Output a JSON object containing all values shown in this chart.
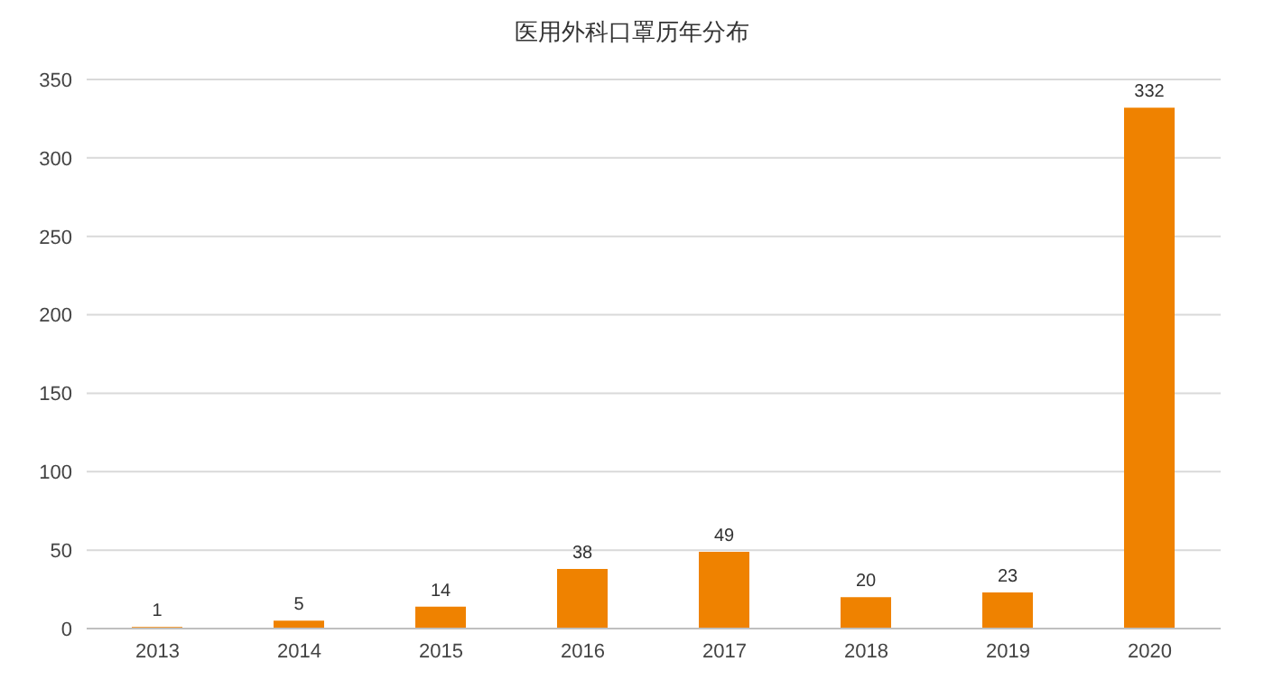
{
  "chart_data": {
    "type": "bar",
    "title": "医用外科口罩历年分布",
    "categories": [
      "2013",
      "2014",
      "2015",
      "2016",
      "2017",
      "2018",
      "2019",
      "2020"
    ],
    "values": [
      1,
      5,
      14,
      38,
      49,
      20,
      23,
      332
    ],
    "color": "#ef8200",
    "ylim": [
      0,
      350
    ],
    "yticks": [
      0,
      50,
      100,
      150,
      200,
      250,
      300,
      350
    ],
    "grid": "y",
    "data_labels": true
  }
}
